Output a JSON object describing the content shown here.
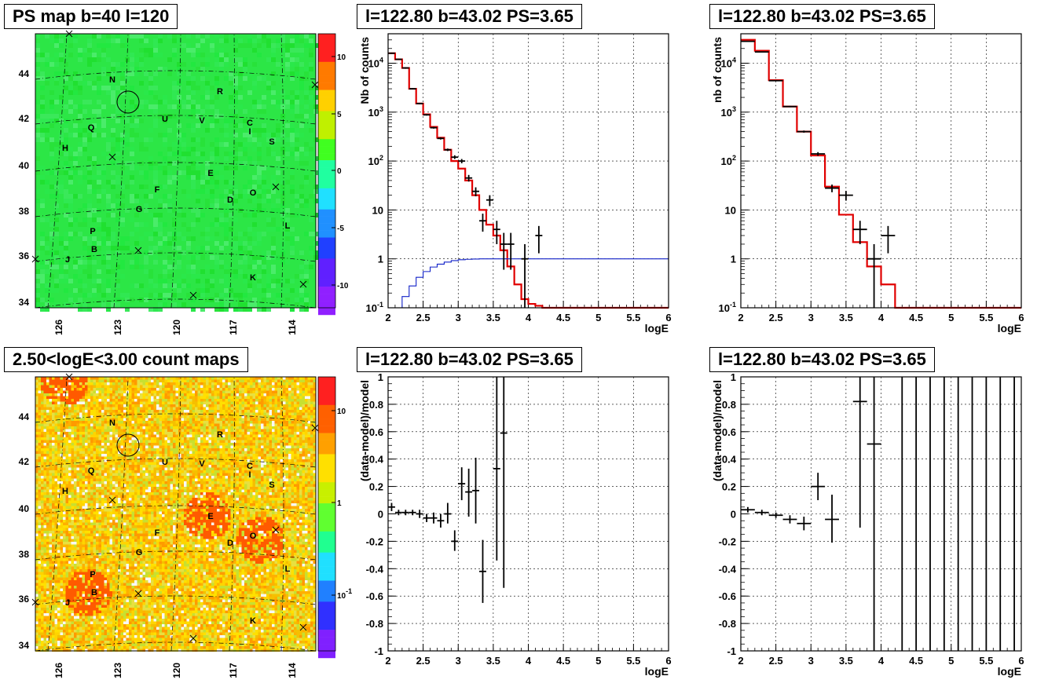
{
  "colors": {
    "frame": "#000000",
    "grid": "#000000",
    "model_line": "#e00000",
    "flat_line": "#1020c8",
    "data_marker": "#000000"
  },
  "panels": {
    "ps_map": {
      "title": "PS map b=40 l=120",
      "x_ticks": [
        "126",
        "123",
        "120",
        "117",
        "114"
      ],
      "y_ticks": [
        "44",
        "42",
        "40",
        "38",
        "36",
        "34"
      ],
      "colorbar_ticks": [
        "10",
        "5",
        "0",
        "-5",
        "-10"
      ],
      "sources": [
        "N",
        "R",
        "Q",
        "U",
        "V",
        "C",
        "I",
        "H",
        "S",
        "E",
        "F",
        "O",
        "G",
        "D",
        "L",
        "P",
        "B",
        "J",
        "K"
      ],
      "palette": "green-dominant rainbow"
    },
    "count_map": {
      "title": "2.50<logE<3.00 count maps",
      "x_ticks": [
        "126",
        "123",
        "120",
        "117",
        "114"
      ],
      "y_ticks": [
        "44",
        "42",
        "40",
        "38",
        "36",
        "34"
      ],
      "colorbar_ticks": [
        "10",
        "1",
        "10^-1"
      ],
      "sources": [
        "N",
        "R",
        "Q",
        "U",
        "V",
        "C",
        "I",
        "H",
        "S",
        "E",
        "F",
        "O",
        "G",
        "D",
        "L",
        "P",
        "B",
        "J",
        "K"
      ]
    },
    "spec1": {
      "title": "l=122.80 b=43.02 PS=3.65"
    },
    "spec2": {
      "title": "l=122.80 b=43.02 PS=3.65"
    },
    "res1": {
      "title": "l=122.80 b=43.02 PS=3.65"
    },
    "res2": {
      "title": "l=122.80 b=43.02 PS=3.65"
    }
  },
  "chart_data": [
    {
      "id": "spec1",
      "type": "line",
      "xlabel": "logE",
      "ylabel": "Nb of counts",
      "xlim": [
        2,
        6
      ],
      "ylim": [
        0.1,
        40000
      ],
      "y_scale": "log",
      "x_ticks": [
        "2",
        "2.5",
        "3",
        "3.5",
        "4",
        "4.5",
        "5",
        "5.5",
        "6"
      ],
      "y_ticks": [
        "10^-1",
        "1",
        "10",
        "10^2",
        "10^3",
        "10^4"
      ],
      "grid": true,
      "series": [
        {
          "kind": "histogram",
          "color": "#e00000",
          "bin_width": 0.1,
          "bin_starts": [
            2.0,
            2.1,
            2.2,
            2.3,
            2.4,
            2.5,
            2.6,
            2.7,
            2.8,
            2.9,
            3.0,
            3.1,
            3.2,
            3.3,
            3.4,
            3.5,
            3.6,
            3.7,
            3.8,
            3.9,
            4.0,
            4.1,
            4.2
          ],
          "values": [
            16000,
            12000,
            8000,
            3000,
            1500,
            900,
            500,
            300,
            170,
            100,
            70,
            40,
            20,
            10,
            5,
            3,
            1.5,
            0.7,
            0.3,
            0.15,
            0.12,
            0.11,
            0.1
          ]
        },
        {
          "kind": "histogram",
          "color": "#1020c8",
          "bin_width": 0.1,
          "bin_starts": [
            2.0,
            2.1,
            2.2,
            2.3,
            2.4,
            2.5,
            2.6,
            2.7,
            2.8,
            2.9,
            3.0,
            3.1,
            3.2,
            3.3,
            3.4,
            3.5
          ],
          "values": [
            0.07,
            0.1,
            0.17,
            0.28,
            0.42,
            0.55,
            0.68,
            0.78,
            0.86,
            0.92,
            0.96,
            0.98,
            0.99,
            1.0,
            1.0,
            1.0
          ]
        },
        {
          "kind": "errorbars",
          "color": "#000000",
          "points": [
            {
              "x": 2.05,
              "y": 16000,
              "xerr": 0.05,
              "ylo": 15500,
              "yhi": 16500
            },
            {
              "x": 2.15,
              "y": 12000,
              "xerr": 0.05,
              "ylo": 11600,
              "yhi": 12400
            },
            {
              "x": 2.25,
              "y": 8000,
              "xerr": 0.05,
              "ylo": 7700,
              "yhi": 8300
            },
            {
              "x": 2.35,
              "y": 3000,
              "xerr": 0.05,
              "ylo": 2900,
              "yhi": 3100
            },
            {
              "x": 2.45,
              "y": 1500,
              "xerr": 0.05,
              "ylo": 1450,
              "yhi": 1550
            },
            {
              "x": 2.55,
              "y": 880,
              "xerr": 0.05,
              "ylo": 850,
              "yhi": 910
            },
            {
              "x": 2.65,
              "y": 480,
              "xerr": 0.05,
              "ylo": 460,
              "yhi": 500
            },
            {
              "x": 2.75,
              "y": 290,
              "xerr": 0.05,
              "ylo": 275,
              "yhi": 305
            },
            {
              "x": 2.85,
              "y": 170,
              "xerr": 0.05,
              "ylo": 160,
              "yhi": 180
            },
            {
              "x": 2.95,
              "y": 120,
              "xerr": 0.05,
              "ylo": 110,
              "yhi": 131
            },
            {
              "x": 3.05,
              "y": 100,
              "xerr": 0.05,
              "ylo": 90,
              "yhi": 110
            },
            {
              "x": 3.15,
              "y": 45,
              "xerr": 0.05,
              "ylo": 38,
              "yhi": 52
            },
            {
              "x": 3.25,
              "y": 24,
              "xerr": 0.05,
              "ylo": 19,
              "yhi": 29
            },
            {
              "x": 3.35,
              "y": 6,
              "xerr": 0.05,
              "ylo": 3.6,
              "yhi": 8.4
            },
            {
              "x": 3.45,
              "y": 16,
              "xerr": 0.05,
              "ylo": 12,
              "yhi": 20
            },
            {
              "x": 3.55,
              "y": 4,
              "xerr": 0.05,
              "ylo": 2,
              "yhi": 6
            },
            {
              "x": 3.65,
              "y": 2,
              "xerr": 0.05,
              "ylo": 0.6,
              "yhi": 3.4
            },
            {
              "x": 3.75,
              "y": 2,
              "xerr": 0.05,
              "ylo": 0.6,
              "yhi": 3.4
            },
            {
              "x": 3.95,
              "y": 1,
              "xerr": 0.05,
              "ylo": 0.1,
              "yhi": 2
            },
            {
              "x": 4.15,
              "y": 3,
              "xerr": 0.05,
              "ylo": 1.3,
              "yhi": 4.7
            }
          ]
        }
      ]
    },
    {
      "id": "spec2",
      "type": "line",
      "xlabel": "logE",
      "ylabel": "nb of counts",
      "xlim": [
        2,
        6
      ],
      "ylim": [
        0.1,
        40000
      ],
      "y_scale": "log",
      "x_ticks": [
        "2",
        "2.5",
        "3",
        "3.5",
        "4",
        "4.5",
        "5",
        "5.5",
        "6"
      ],
      "y_ticks": [
        "10^-1",
        "1",
        "10",
        "10^2",
        "10^3",
        "10^4"
      ],
      "grid": true,
      "series": [
        {
          "kind": "histogram",
          "color": "#e00000",
          "bin_width": 0.2,
          "bin_starts": [
            2.0,
            2.2,
            2.4,
            2.6,
            2.8,
            3.0,
            3.2,
            3.4,
            3.6,
            3.8,
            4.0,
            4.2
          ],
          "values": [
            30000,
            18000,
            4500,
            1300,
            400,
            130,
            30,
            8,
            2.2,
            0.7,
            0.3,
            0.1
          ]
        },
        {
          "kind": "errorbars",
          "color": "#000000",
          "points": [
            {
              "x": 2.1,
              "y": 28000,
              "xerr": 0.1,
              "ylo": 27500,
              "yhi": 28500
            },
            {
              "x": 2.3,
              "y": 17000,
              "xerr": 0.1,
              "ylo": 16700,
              "yhi": 17300
            },
            {
              "x": 2.5,
              "y": 4400,
              "xerr": 0.1,
              "ylo": 4300,
              "yhi": 4500
            },
            {
              "x": 2.7,
              "y": 1300,
              "xerr": 0.1,
              "ylo": 1260,
              "yhi": 1340
            },
            {
              "x": 2.9,
              "y": 400,
              "xerr": 0.1,
              "ylo": 380,
              "yhi": 420
            },
            {
              "x": 3.1,
              "y": 140,
              "xerr": 0.1,
              "ylo": 128,
              "yhi": 152
            },
            {
              "x": 3.3,
              "y": 28,
              "xerr": 0.1,
              "ylo": 23,
              "yhi": 33
            },
            {
              "x": 3.5,
              "y": 20,
              "xerr": 0.1,
              "ylo": 15.5,
              "yhi": 24.5
            },
            {
              "x": 3.7,
              "y": 4,
              "xerr": 0.1,
              "ylo": 2,
              "yhi": 6
            },
            {
              "x": 3.9,
              "y": 1,
              "xerr": 0.1,
              "ylo": 0.1,
              "yhi": 2
            },
            {
              "x": 4.1,
              "y": 3,
              "xerr": 0.1,
              "ylo": 1.3,
              "yhi": 4.7
            }
          ]
        }
      ]
    },
    {
      "id": "res1",
      "type": "scatter",
      "xlabel": "logE",
      "ylabel": "(data-model)/model",
      "xlim": [
        2,
        6
      ],
      "ylim": [
        -1,
        1
      ],
      "x_ticks": [
        "2",
        "2.5",
        "3",
        "3.5",
        "4",
        "4.5",
        "5",
        "5.5",
        "6"
      ],
      "y_ticks": [
        "-1",
        "-0.8",
        "-0.6",
        "-0.4",
        "-0.2",
        "0",
        "0.2",
        "0.4",
        "0.6",
        "0.8",
        "1"
      ],
      "grid": true,
      "series": [
        {
          "kind": "errorbars",
          "color": "#000000",
          "points": [
            {
              "x": 2.05,
              "y": 0.05,
              "xerr": 0.05,
              "ylo": 0.02,
              "yhi": 0.08
            },
            {
              "x": 2.15,
              "y": 0.01,
              "xerr": 0.05,
              "ylo": -0.01,
              "yhi": 0.03
            },
            {
              "x": 2.25,
              "y": 0.01,
              "xerr": 0.05,
              "ylo": -0.01,
              "yhi": 0.03
            },
            {
              "x": 2.35,
              "y": 0.01,
              "xerr": 0.05,
              "ylo": -0.01,
              "yhi": 0.03
            },
            {
              "x": 2.45,
              "y": 0.0,
              "xerr": 0.05,
              "ylo": -0.03,
              "yhi": 0.03
            },
            {
              "x": 2.55,
              "y": -0.03,
              "xerr": 0.05,
              "ylo": -0.06,
              "yhi": 0.0
            },
            {
              "x": 2.65,
              "y": -0.03,
              "xerr": 0.05,
              "ylo": -0.07,
              "yhi": 0.01
            },
            {
              "x": 2.75,
              "y": -0.05,
              "xerr": 0.05,
              "ylo": -0.1,
              "yhi": 0.0
            },
            {
              "x": 2.85,
              "y": 0.0,
              "xerr": 0.05,
              "ylo": -0.07,
              "yhi": 0.08
            },
            {
              "x": 2.95,
              "y": -0.2,
              "xerr": 0.05,
              "ylo": -0.27,
              "yhi": -0.12
            },
            {
              "x": 3.05,
              "y": 0.22,
              "xerr": 0.05,
              "ylo": 0.1,
              "yhi": 0.34
            },
            {
              "x": 3.15,
              "y": 0.16,
              "xerr": 0.05,
              "ylo": -0.02,
              "yhi": 0.33
            },
            {
              "x": 3.25,
              "y": 0.17,
              "xerr": 0.05,
              "ylo": -0.07,
              "yhi": 0.41
            },
            {
              "x": 3.35,
              "y": -0.42,
              "xerr": 0.05,
              "ylo": -0.65,
              "yhi": -0.19
            },
            {
              "x": 3.55,
              "y": 0.33,
              "xerr": 0.05,
              "ylo": -0.34,
              "yhi": 1.0
            },
            {
              "x": 3.65,
              "y": 0.59,
              "xerr": 0.05,
              "ylo": -0.54,
              "yhi": 1.0
            }
          ]
        }
      ]
    },
    {
      "id": "res2",
      "type": "scatter",
      "xlabel": "logE",
      "ylabel": "(data-model)/model",
      "xlim": [
        2,
        6
      ],
      "ylim": [
        -1,
        1
      ],
      "x_ticks": [
        "2",
        "2.5",
        "3",
        "3.5",
        "4",
        "4.5",
        "5",
        "5.5",
        "6"
      ],
      "y_ticks": [
        "-1",
        "-0.8",
        "-0.6",
        "-0.4",
        "-0.2",
        "0",
        "0.2",
        "0.4",
        "0.6",
        "0.8",
        "1"
      ],
      "grid": true,
      "series": [
        {
          "kind": "errorbars",
          "color": "#000000",
          "points": [
            {
              "x": 2.1,
              "y": 0.03,
              "xerr": 0.1,
              "ylo": 0.01,
              "yhi": 0.05
            },
            {
              "x": 2.3,
              "y": 0.01,
              "xerr": 0.1,
              "ylo": -0.01,
              "yhi": 0.03
            },
            {
              "x": 2.5,
              "y": -0.01,
              "xerr": 0.1,
              "ylo": -0.03,
              "yhi": 0.01
            },
            {
              "x": 2.7,
              "y": -0.04,
              "xerr": 0.1,
              "ylo": -0.07,
              "yhi": -0.01
            },
            {
              "x": 2.9,
              "y": -0.07,
              "xerr": 0.1,
              "ylo": -0.12,
              "yhi": -0.02
            },
            {
              "x": 3.1,
              "y": 0.2,
              "xerr": 0.1,
              "ylo": 0.1,
              "yhi": 0.3
            },
            {
              "x": 3.3,
              "y": -0.04,
              "xerr": 0.1,
              "ylo": -0.21,
              "yhi": 0.14
            },
            {
              "x": 3.7,
              "y": 0.82,
              "xerr": 0.1,
              "ylo": -0.1,
              "yhi": 1.0
            },
            {
              "x": 3.9,
              "y": 0.51,
              "xerr": 0.1,
              "ylo": -1.0,
              "yhi": 1.0
            },
            {
              "x": 4.3,
              "y": 0,
              "xerr": 0,
              "ylo": -1.0,
              "yhi": 1.0
            },
            {
              "x": 4.5,
              "y": 0,
              "xerr": 0,
              "ylo": -1.0,
              "yhi": 1.0
            },
            {
              "x": 4.7,
              "y": 0,
              "xerr": 0,
              "ylo": -1.0,
              "yhi": 1.0
            },
            {
              "x": 4.9,
              "y": 0,
              "xerr": 0,
              "ylo": -1.0,
              "yhi": 1.0
            },
            {
              "x": 5.1,
              "y": 0,
              "xerr": 0,
              "ylo": -1.0,
              "yhi": 1.0
            },
            {
              "x": 5.3,
              "y": 0,
              "xerr": 0,
              "ylo": -1.0,
              "yhi": 1.0
            },
            {
              "x": 5.5,
              "y": 0,
              "xerr": 0,
              "ylo": -1.0,
              "yhi": 1.0
            },
            {
              "x": 5.7,
              "y": 0,
              "xerr": 0,
              "ylo": -1.0,
              "yhi": 1.0
            },
            {
              "x": 5.9,
              "y": 0,
              "xerr": 0,
              "ylo": -1.0,
              "yhi": 1.0
            }
          ]
        }
      ]
    }
  ]
}
